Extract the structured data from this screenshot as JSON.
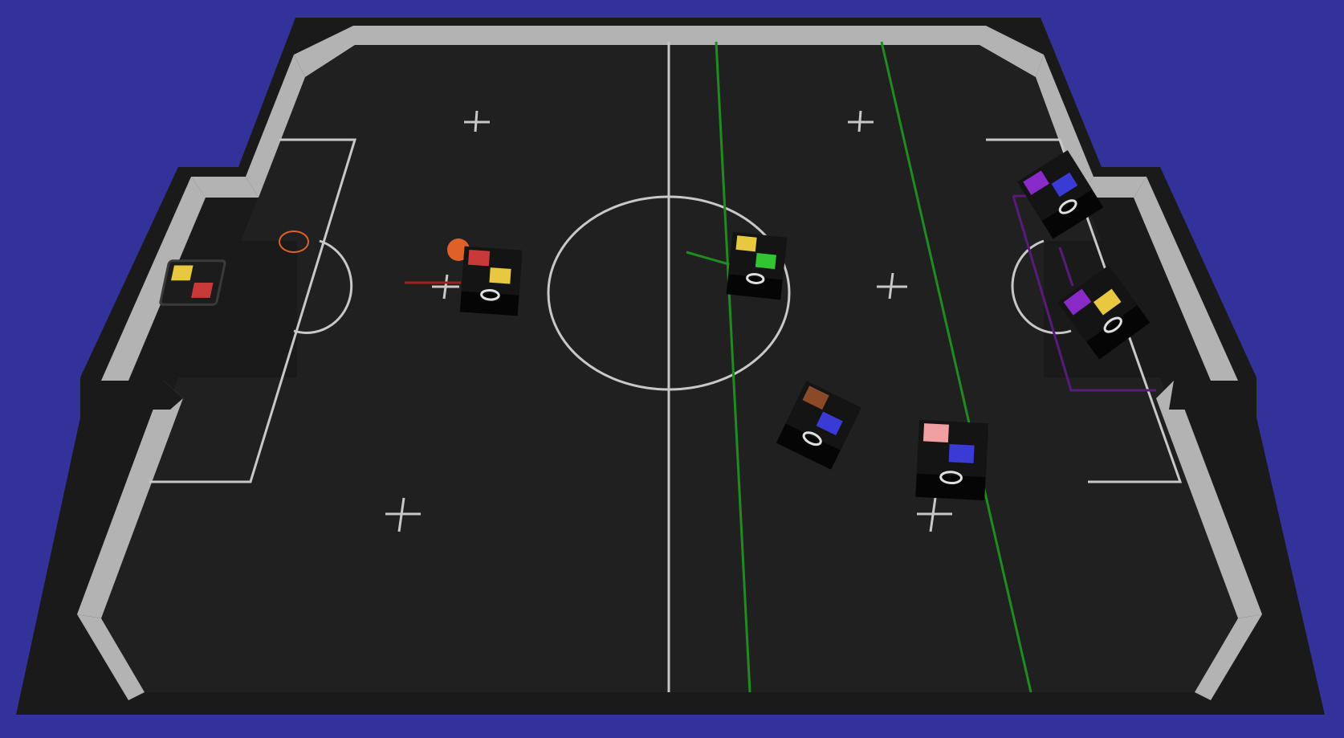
{
  "scene": {
    "background_color": "#32329a",
    "field_color": "#202020",
    "wall_top_color": "#b3b3b3",
    "wall_side_color": "#1a1a1a",
    "line_color": "#c8c8c8"
  },
  "ball": {
    "color": "#e0602a"
  },
  "robots": [
    {
      "id": "robot-left-keeper",
      "team": "yellow-team",
      "markers": [
        "#e8c840",
        "#c83a3a"
      ]
    },
    {
      "id": "robot-red-yellow",
      "team": "yellow-team",
      "markers": [
        "#c83a3a",
        "#e8c840"
      ]
    },
    {
      "id": "robot-yellow-green",
      "team": "yellow-team",
      "markers": [
        "#e8c840",
        "#33c433"
      ]
    },
    {
      "id": "robot-brown-blue",
      "team": "opponent-team",
      "markers": [
        "#8a4a2a",
        "#3a3ad4"
      ]
    },
    {
      "id": "robot-pink-blue",
      "team": "opponent-team",
      "markers": [
        "#f0a0a0",
        "#3a3ad4"
      ]
    },
    {
      "id": "robot-purple-blue",
      "team": "opponent-team",
      "markers": [
        "#8a2ac8",
        "#3a3ad4"
      ]
    },
    {
      "id": "robot-purple-yellow",
      "team": "opponent-team",
      "markers": [
        "#8a2ac8",
        "#e8c840"
      ]
    }
  ],
  "overlays": {
    "green_line_color": "#1e8c1e",
    "purple_box_color": "#5a1a7a",
    "red_line_color": "#a02020"
  }
}
